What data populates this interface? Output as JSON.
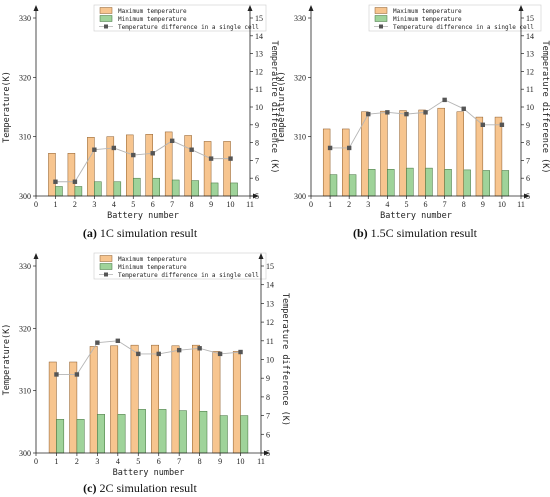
{
  "colors": {
    "max_fill": "#f7c58f",
    "max_stroke": "#8a5a2a",
    "min_fill": "#9fd39a",
    "min_stroke": "#3f6f3a",
    "diff_line": "#b5b5b5",
    "diff_marker": "#555555"
  },
  "legend": {
    "max": "Maximum temperature",
    "min": "Minimum temperature",
    "diff": "Temperature difference in a single cell"
  },
  "chart_data": [
    {
      "type": "bar",
      "caption_tag": "(a)",
      "caption_text": "1C simulation result",
      "xlabel": "Battery number",
      "ylabel": "Temperature(K)",
      "ylabel2": "Temperature difference (K)",
      "x": [
        1,
        2,
        3,
        4,
        5,
        6,
        7,
        8,
        9,
        10
      ],
      "xlim": [
        0,
        11
      ],
      "ylim": [
        300,
        330
      ],
      "y2lim": [
        5,
        15
      ],
      "y_ticks": [
        300,
        310,
        320,
        330
      ],
      "y2_ticks": [
        5,
        6,
        7,
        8,
        9,
        10,
        11,
        12,
        13,
        14,
        15
      ],
      "x_ticks": [
        0,
        1,
        2,
        3,
        4,
        5,
        6,
        7,
        8,
        9,
        10,
        11
      ],
      "series": [
        {
          "name": "Maximum temperature",
          "kind": "bar",
          "values": [
            307.2,
            307.2,
            309.9,
            310.0,
            310.3,
            310.4,
            310.8,
            310.2,
            309.2,
            309.2
          ]
        },
        {
          "name": "Minimum temperature",
          "kind": "bar",
          "values": [
            301.6,
            301.6,
            302.4,
            302.4,
            303.0,
            303.0,
            302.7,
            302.6,
            302.2,
            302.2
          ]
        },
        {
          "name": "Temperature difference in a single cell",
          "kind": "line",
          "axis": "right",
          "values": [
            5.8,
            5.8,
            7.6,
            7.7,
            7.3,
            7.4,
            8.1,
            7.6,
            7.1,
            7.1
          ]
        }
      ]
    },
    {
      "type": "bar",
      "caption_tag": "(b)",
      "caption_text": "1.5C simulation result",
      "xlabel": "Battery number",
      "ylabel": "Temperature(K)",
      "ylabel2": "Temperature difference (K)",
      "x": [
        1,
        2,
        3,
        4,
        5,
        6,
        7,
        8,
        9,
        10
      ],
      "xlim": [
        0,
        11
      ],
      "ylim": [
        300,
        330
      ],
      "y2lim": [
        5,
        15
      ],
      "y_ticks": [
        300,
        310,
        320,
        330
      ],
      "y2_ticks": [
        5,
        6,
        7,
        8,
        9,
        10,
        11,
        12,
        13,
        14,
        15
      ],
      "x_ticks": [
        0,
        1,
        2,
        3,
        4,
        5,
        6,
        7,
        8,
        9,
        10,
        11
      ],
      "series": [
        {
          "name": "Maximum temperature",
          "kind": "bar",
          "values": [
            311.3,
            311.3,
            314.2,
            314.3,
            314.4,
            314.5,
            314.8,
            314.2,
            313.3,
            313.3
          ]
        },
        {
          "name": "Minimum temperature",
          "kind": "bar",
          "values": [
            303.6,
            303.6,
            304.5,
            304.5,
            304.7,
            304.7,
            304.5,
            304.4,
            304.3,
            304.3
          ]
        },
        {
          "name": "Temperature difference in a single cell",
          "kind": "line",
          "axis": "right",
          "values": [
            7.7,
            7.7,
            9.6,
            9.7,
            9.6,
            9.7,
            10.4,
            9.9,
            9.0,
            9.0
          ]
        }
      ]
    },
    {
      "type": "bar",
      "caption_tag": "(c)",
      "caption_text": "2C simulation result",
      "xlabel": "Battery number",
      "ylabel": "Temperature(K)",
      "ylabel2": "Temperature difference (K)",
      "x": [
        1,
        2,
        3,
        4,
        5,
        6,
        7,
        8,
        9,
        10
      ],
      "xlim": [
        0,
        11
      ],
      "ylim": [
        300,
        330
      ],
      "y2lim": [
        5,
        15
      ],
      "y_ticks": [
        300,
        310,
        320,
        330
      ],
      "y2_ticks": [
        5,
        6,
        7,
        8,
        9,
        10,
        11,
        12,
        13,
        14,
        15
      ],
      "x_ticks": [
        0,
        1,
        2,
        3,
        4,
        5,
        6,
        7,
        8,
        9,
        10,
        11
      ],
      "series": [
        {
          "name": "Maximum temperature",
          "kind": "bar",
          "values": [
            314.6,
            314.6,
            317.1,
            317.2,
            317.3,
            317.3,
            317.2,
            317.3,
            316.3,
            316.3
          ]
        },
        {
          "name": "Minimum temperature",
          "kind": "bar",
          "values": [
            305.4,
            305.4,
            306.2,
            306.2,
            307.0,
            307.0,
            306.8,
            306.7,
            306.0,
            306.0
          ]
        },
        {
          "name": "Temperature difference in a single cell",
          "kind": "line",
          "axis": "right",
          "values": [
            9.2,
            9.2,
            10.9,
            11.0,
            10.3,
            10.3,
            10.5,
            10.6,
            10.3,
            10.4
          ]
        }
      ]
    }
  ]
}
